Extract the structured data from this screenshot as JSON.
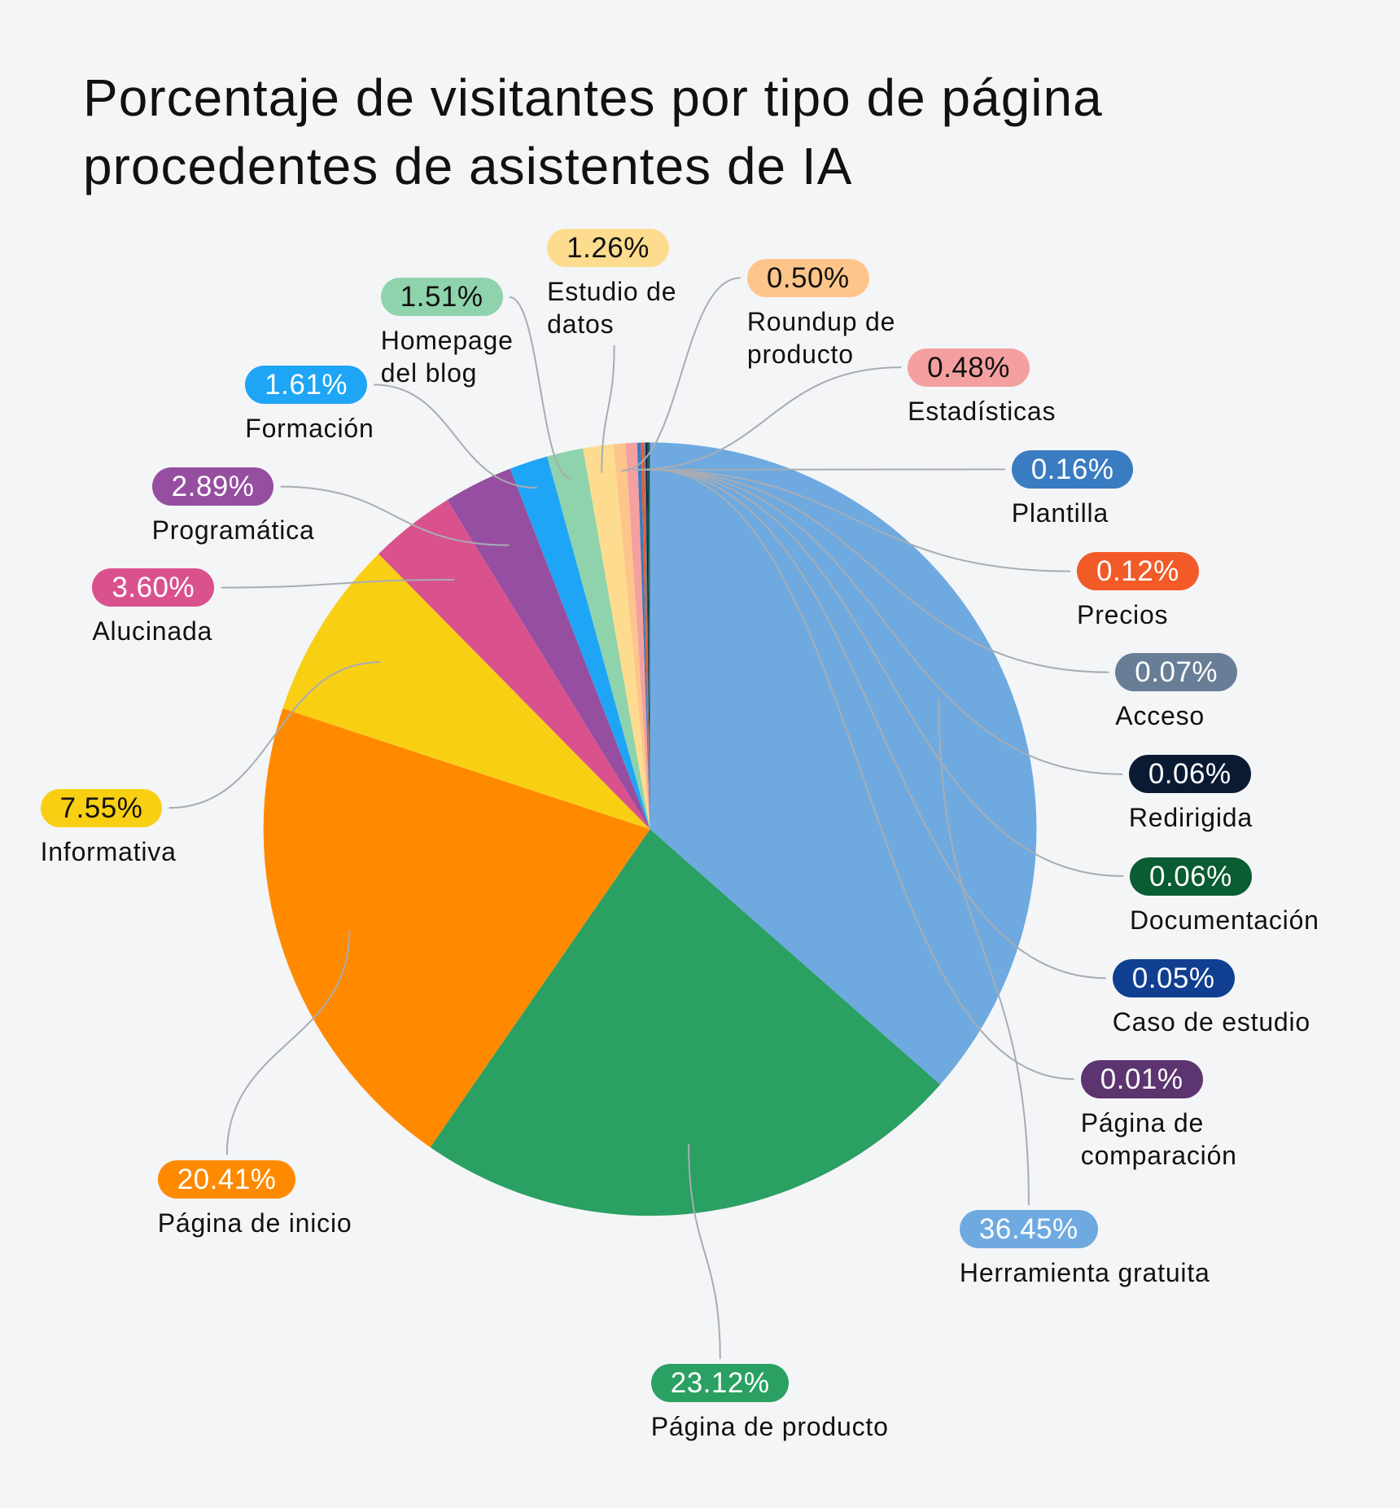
{
  "chart_data": {
    "type": "pie",
    "title": "Porcentaje de visitantes por tipo de página procedentes de asistentes de IA",
    "categories": [
      "Herramienta gratuita",
      "Página de producto",
      "Página de inicio",
      "Informativa",
      "Alucinada",
      "Programática",
      "Formación",
      "Homepage del blog",
      "Estudio de datos",
      "Roundup de producto",
      "Estadísticas",
      "Plantilla",
      "Precios",
      "Acceso",
      "Redirigida",
      "Documentación",
      "Caso de estudio",
      "Página de comparación"
    ],
    "values": [
      36.45,
      23.12,
      20.41,
      7.55,
      3.6,
      2.89,
      1.61,
      1.51,
      1.26,
      0.5,
      0.48,
      0.16,
      0.12,
      0.07,
      0.06,
      0.06,
      0.05,
      0.01
    ],
    "value_labels": [
      "36.45%",
      "23.12%",
      "20.41%",
      "7.55%",
      "3.60%",
      "2.89%",
      "1.61%",
      "1.51%",
      "1.26%",
      "0.50%",
      "0.48%",
      "0.16%",
      "0.12%",
      "0.07%",
      "0.06%",
      "0.06%",
      "0.05%",
      "0.01%"
    ],
    "colors": [
      "#6eaae0",
      "#2aa062",
      "#ff8a00",
      "#f9cf14",
      "#d9528e",
      "#964ea0",
      "#1fa5f6",
      "#8ed3ac",
      "#fedc8f",
      "#fec58a",
      "#f4a0a0",
      "#3a7cc1",
      "#f25a28",
      "#687d96",
      "#0b1a33",
      "#0a5c32",
      "#103f91",
      "#5c3470"
    ]
  }
}
